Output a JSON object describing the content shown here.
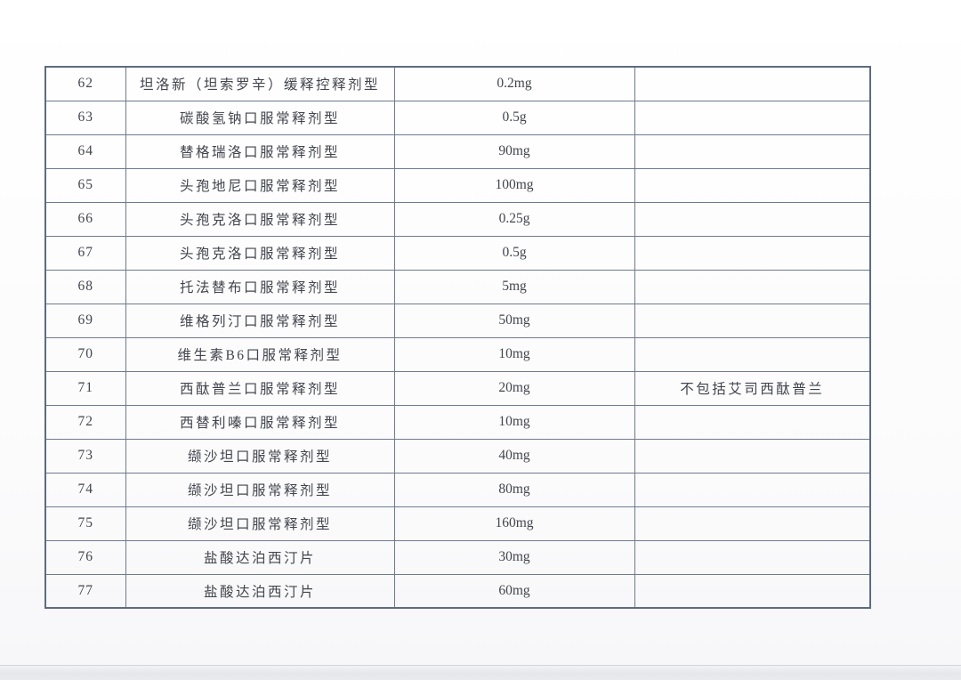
{
  "page": {
    "background_color": "#fcfcfd",
    "bottom_shadow_color": "#e6e7eb"
  },
  "table": {
    "border_color": "#6e7b8d",
    "text_color": "#42454d",
    "columns": [
      "index",
      "name",
      "dosage",
      "remark"
    ],
    "rows": [
      {
        "index": "62",
        "name": "坦洛新（坦索罗辛）缓释控释剂型",
        "dosage": "0.2mg",
        "remark": ""
      },
      {
        "index": "63",
        "name": "碳酸氢钠口服常释剂型",
        "dosage": "0.5g",
        "remark": ""
      },
      {
        "index": "64",
        "name": "替格瑞洛口服常释剂型",
        "dosage": "90mg",
        "remark": ""
      },
      {
        "index": "65",
        "name": "头孢地尼口服常释剂型",
        "dosage": "100mg",
        "remark": ""
      },
      {
        "index": "66",
        "name": "头孢克洛口服常释剂型",
        "dosage": "0.25g",
        "remark": ""
      },
      {
        "index": "67",
        "name": "头孢克洛口服常释剂型",
        "dosage": "0.5g",
        "remark": ""
      },
      {
        "index": "68",
        "name": "托法替布口服常释剂型",
        "dosage": "5mg",
        "remark": ""
      },
      {
        "index": "69",
        "name": "维格列汀口服常释剂型",
        "dosage": "50mg",
        "remark": ""
      },
      {
        "index": "70",
        "name": "维生素B6口服常释剂型",
        "dosage": "10mg",
        "remark": ""
      },
      {
        "index": "71",
        "name": "西酞普兰口服常释剂型",
        "dosage": "20mg",
        "remark": "不包括艾司西酞普兰"
      },
      {
        "index": "72",
        "name": "西替利嗪口服常释剂型",
        "dosage": "10mg",
        "remark": ""
      },
      {
        "index": "73",
        "name": "缬沙坦口服常释剂型",
        "dosage": "40mg",
        "remark": ""
      },
      {
        "index": "74",
        "name": "缬沙坦口服常释剂型",
        "dosage": "80mg",
        "remark": ""
      },
      {
        "index": "75",
        "name": "缬沙坦口服常释剂型",
        "dosage": "160mg",
        "remark": ""
      },
      {
        "index": "76",
        "name": "盐酸达泊西汀片",
        "dosage": "30mg",
        "remark": ""
      },
      {
        "index": "77",
        "name": "盐酸达泊西汀片",
        "dosage": "60mg",
        "remark": ""
      }
    ]
  }
}
